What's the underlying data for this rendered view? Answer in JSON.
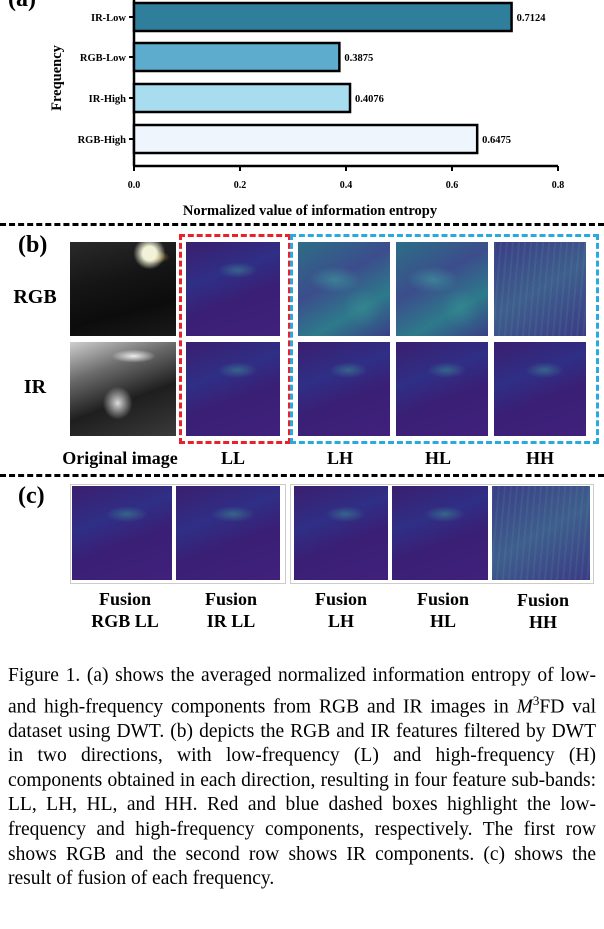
{
  "panel_labels": {
    "a": "(a)",
    "b": "(b)",
    "c": "(c)"
  },
  "chart_data": {
    "type": "bar",
    "orientation": "horizontal",
    "categories": [
      "IR-Low",
      "RGB-Low",
      "IR-High",
      "RGB-High"
    ],
    "values": [
      0.7124,
      0.3875,
      0.4076,
      0.6475
    ],
    "value_labels": [
      "0.7124",
      "0.3875",
      "0.4076",
      "0.6475"
    ],
    "ylabel": "Frequency",
    "xlabel": "Normalized value of information entropy",
    "xlim": [
      0.0,
      0.8
    ],
    "xticks": [
      "0.0",
      "0.2",
      "0.4",
      "0.6",
      "0.8"
    ],
    "colors": [
      "#2f7f9c",
      "#5eaccd",
      "#a8dcef",
      "#eef5fd"
    ],
    "grid": false
  },
  "panel_b": {
    "row_labels": [
      "RGB",
      "IR"
    ],
    "col_labels": [
      "Original image",
      "LL",
      "LH",
      "HL",
      "HH"
    ],
    "box_colors": {
      "low": "#e8212b",
      "high": "#2aa8e0"
    }
  },
  "panel_c": {
    "labels": [
      [
        "Fusion",
        "RGB LL"
      ],
      [
        "Fusion",
        "IR LL"
      ],
      [
        "Fusion",
        "LH"
      ],
      [
        "Fusion",
        "HL"
      ],
      [
        "Fusion",
        "HH"
      ]
    ]
  },
  "caption": {
    "parts": [
      "Figure 1. (a) shows the averaged normalized information entropy of low- and high-frequency components from RGB and IR images in ",
      "M",
      "3",
      "FD val dataset using DWT. (b) depicts the RGB and IR features filtered by DWT in two directions, with low-frequency (L) and high-frequency (H) components obtained in each direction, resulting in four feature sub-bands: LL, LH, HL, and HH. Red and blue dashed boxes highlight the low-frequency and high-frequency components, respectively. The first row shows RGB and the second row shows IR components. (c) shows the result of fusion of each frequency."
    ]
  }
}
